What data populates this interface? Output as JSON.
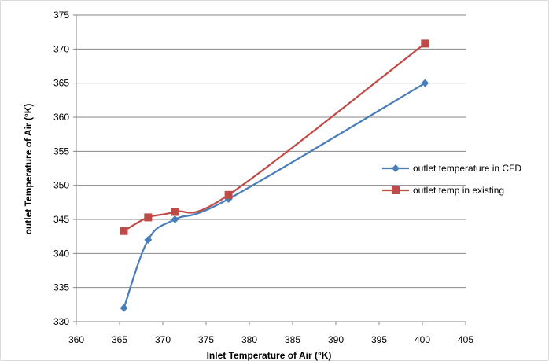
{
  "chart_data": {
    "type": "line",
    "title": "",
    "xlabel": "Inlet Temperature of Air (°K)",
    "ylabel": "outlet Temperature of Air (°K)",
    "xlim": [
      360,
      405
    ],
    "ylim": [
      330,
      375
    ],
    "xticks": [
      360,
      365,
      370,
      375,
      380,
      385,
      390,
      395,
      400,
      405
    ],
    "yticks": [
      330,
      335,
      340,
      345,
      350,
      355,
      360,
      365,
      370,
      375
    ],
    "grid": "horizontal",
    "legend_position": "right",
    "series": [
      {
        "name": "outlet temperature in CFD",
        "color": "#4a7ebb",
        "marker": "diamond",
        "x": [
          365.5,
          368.3,
          371.4,
          377.6,
          400.3
        ],
        "y": [
          332.0,
          342.0,
          345.0,
          348.0,
          365.0
        ]
      },
      {
        "name": "outlet temp in existing",
        "color": "#be4b48",
        "marker": "square",
        "x": [
          365.5,
          368.3,
          371.4,
          377.6,
          400.3
        ],
        "y": [
          343.3,
          345.3,
          346.1,
          348.6,
          370.8
        ]
      }
    ]
  }
}
